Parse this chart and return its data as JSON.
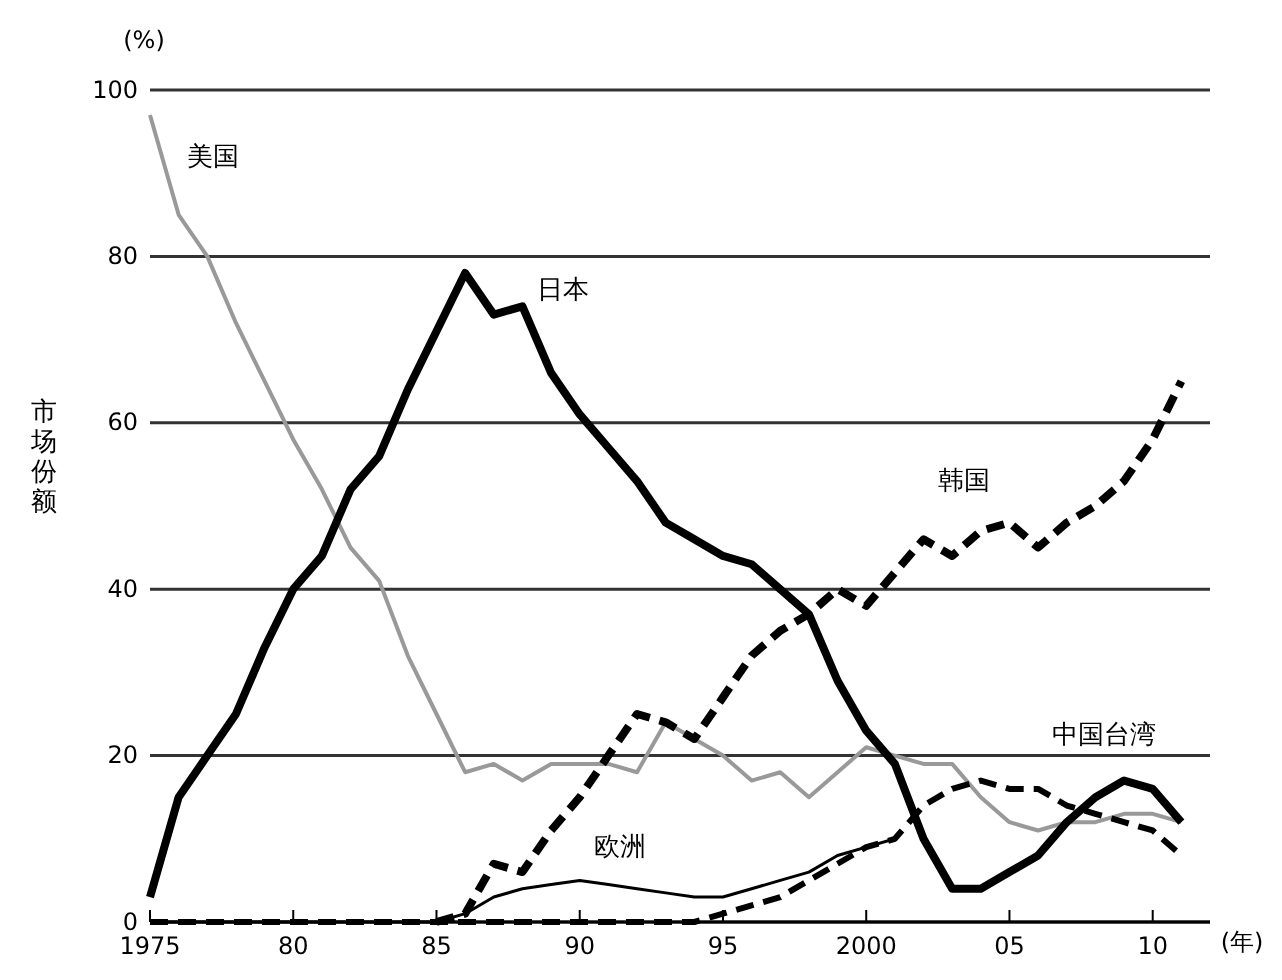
{
  "chart_data": {
    "type": "line",
    "ylabel": "市场份额",
    "xlim": [
      1975,
      2012
    ],
    "ylim": [
      0,
      100
    ],
    "xticks": [
      1975,
      {
        "value": 1980,
        "label": "80"
      },
      {
        "value": 1985,
        "label": "85"
      },
      {
        "value": 1990,
        "label": "90"
      },
      {
        "value": 1995,
        "label": "95"
      },
      2000,
      {
        "value": 2005,
        "label": "05"
      },
      {
        "value": 2010,
        "label": "10"
      }
    ],
    "yticks": [
      0,
      20,
      40,
      60,
      80,
      100
    ],
    "grid": "y",
    "annotations": [
      "(%)",
      "(年)"
    ],
    "series": [
      {
        "name": "美国",
        "color": "#999999",
        "line_style": "solid",
        "x": [
          1975,
          1976,
          1977,
          1978,
          1979,
          1980,
          1981,
          1982,
          1983,
          1984,
          1985,
          1986,
          1987,
          1988,
          1989,
          1990,
          1991,
          1992,
          1993,
          1994,
          1995,
          1996,
          1997,
          1998,
          1999,
          2000,
          2001,
          2002,
          2003,
          2004,
          2005,
          2006,
          2007,
          2008,
          2009,
          2010,
          2011
        ],
        "values": [
          97,
          85,
          80,
          72,
          65,
          58,
          52,
          45,
          41,
          32,
          25,
          18,
          19,
          17,
          19,
          19,
          19,
          18,
          24,
          22,
          20,
          17,
          18,
          15,
          18,
          21,
          20,
          19,
          19,
          15,
          12,
          11,
          12,
          12,
          13,
          13,
          12
        ]
      },
      {
        "name": "日本",
        "color": "#000000",
        "line_style": "solid",
        "x": [
          1975,
          1976,
          1977,
          1978,
          1979,
          1980,
          1981,
          1982,
          1983,
          1984,
          1985,
          1986,
          1987,
          1988,
          1989,
          1990,
          1991,
          1992,
          1993,
          1994,
          1995,
          1996,
          1997,
          1998,
          1999,
          2000,
          2001,
          2002,
          2003,
          2004,
          2005,
          2006,
          2007,
          2008,
          2009,
          2010,
          2011
        ],
        "values": [
          3,
          15,
          20,
          25,
          33,
          40,
          44,
          52,
          56,
          64,
          71,
          78,
          73,
          74,
          66,
          61,
          57,
          53,
          48,
          46,
          44,
          43,
          40,
          37,
          29,
          23,
          19,
          10,
          4,
          4,
          6,
          8,
          12,
          15,
          17,
          16,
          12
        ]
      },
      {
        "name": "韩国",
        "color": "#000000",
        "line_style": "dashed",
        "x": [
          1985,
          1986,
          1987,
          1988,
          1989,
          1990,
          1991,
          1992,
          1993,
          1994,
          1995,
          1996,
          1997,
          1998,
          1999,
          2000,
          2001,
          2002,
          2003,
          2004,
          2005,
          2006,
          2007,
          2008,
          2009,
          2010,
          2011
        ],
        "values": [
          0,
          1,
          7,
          6,
          11,
          15,
          20,
          25,
          24,
          22,
          27,
          32,
          35,
          37,
          40,
          38,
          42,
          46,
          44,
          47,
          48,
          45,
          48,
          50,
          53,
          58,
          65
        ]
      },
      {
        "name": "欧洲",
        "color": "#000000",
        "line_style": "solid",
        "x": [
          1975,
          1985,
          1986,
          1987,
          1988,
          1989,
          1990,
          1991,
          1992,
          1993,
          1994,
          1995,
          1996,
          1997,
          1998,
          1999,
          2000,
          2001
        ],
        "values": [
          0,
          0,
          1,
          3,
          4,
          4.5,
          5,
          4.5,
          4,
          3.5,
          3,
          3,
          4,
          5,
          6,
          8,
          9,
          10
        ]
      },
      {
        "name": "中国台湾",
        "color": "#000000",
        "line_style": "dashed",
        "x": [
          1975,
          1994,
          1995,
          1996,
          1997,
          1998,
          1999,
          2000,
          2001,
          2002,
          2003,
          2004,
          2005,
          2006,
          2007,
          2008,
          2009,
          2010,
          2011
        ],
        "values": [
          0,
          0,
          1,
          2,
          3,
          5,
          7,
          9,
          10,
          14,
          16,
          17,
          16,
          16,
          14,
          13,
          12,
          11,
          8
        ]
      }
    ]
  }
}
